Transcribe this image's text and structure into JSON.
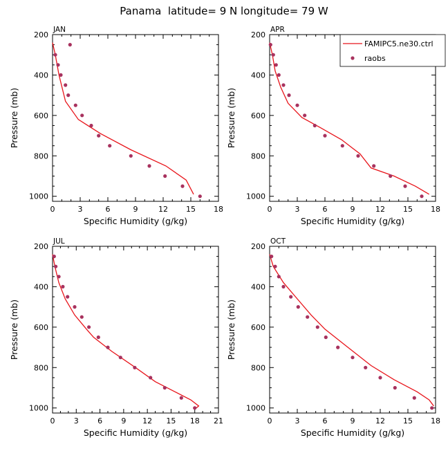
{
  "title": "Panama  latitude= 9 N longitude= 79 W",
  "legend": {
    "placement": "top-right of APR panel",
    "model_label": "FAMIPC5.ne30.ctrl",
    "obs_label": "raobs"
  },
  "colors": {
    "model": "#e8141a",
    "obs": "#a8325e"
  },
  "chart_data": [
    {
      "type": "line",
      "panel": "JAN",
      "xlabel": "Specific Humidity (g/kg)",
      "ylabel": "Pressure (mb)",
      "xlim": [
        0,
        18
      ],
      "xticks": [
        0,
        3,
        6,
        9,
        12,
        15,
        18
      ],
      "ylim": [
        200,
        1025
      ],
      "yticks": [
        200,
        400,
        600,
        800,
        1000
      ],
      "y_inverted": true,
      "series": [
        {
          "name": "FAMIPC5.ne30.ctrl",
          "x": [
            0.0,
            0.3,
            0.7,
            1.4,
            2.8,
            5.2,
            8.5,
            12.3,
            14.5,
            15.3
          ],
          "y": [
            240,
            300,
            400,
            530,
            620,
            690,
            770,
            850,
            920,
            990
          ]
        },
        {
          "name": "raobs",
          "x": [
            1.9,
            0.3,
            0.6,
            0.9,
            1.4,
            1.7,
            2.5,
            3.2,
            4.2,
            5.0,
            6.2,
            8.5,
            10.5,
            12.2,
            14.1,
            16.0
          ],
          "y": [
            250,
            300,
            350,
            400,
            450,
            500,
            550,
            600,
            650,
            700,
            750,
            800,
            850,
            900,
            950,
            1000
          ]
        }
      ]
    },
    {
      "type": "line",
      "panel": "APR",
      "xlabel": "Specific Humidity (g/kg)",
      "ylabel": "Pressure (mb)",
      "xlim": [
        0,
        18
      ],
      "xticks": [
        0,
        3,
        6,
        9,
        12,
        15,
        18
      ],
      "ylim": [
        200,
        1025
      ],
      "yticks": [
        200,
        400,
        600,
        800,
        1000
      ],
      "y_inverted": true,
      "series": [
        {
          "name": "FAMIPC5.ne30.ctrl",
          "x": [
            0.0,
            0.3,
            0.6,
            1.2,
            2.0,
            3.5,
            5.5,
            7.8,
            9.8,
            11.0,
            13.5,
            15.8,
            17.3
          ],
          "y": [
            240,
            300,
            380,
            460,
            540,
            610,
            660,
            720,
            790,
            860,
            900,
            950,
            990
          ]
        },
        {
          "name": "raobs",
          "x": [
            0.1,
            0.4,
            0.7,
            1.0,
            1.5,
            2.1,
            3.0,
            3.8,
            4.9,
            6.0,
            7.9,
            9.6,
            11.3,
            13.1,
            14.7,
            16.5
          ],
          "y": [
            250,
            300,
            350,
            400,
            450,
            500,
            550,
            600,
            650,
            700,
            750,
            800,
            850,
            900,
            950,
            1000
          ]
        }
      ]
    },
    {
      "type": "line",
      "panel": "JUL",
      "xlabel": "Specific Humidity (g/kg)",
      "ylabel": "Pressure (mb)",
      "xlim": [
        0,
        21
      ],
      "xticks": [
        0,
        3,
        6,
        9,
        12,
        15,
        18,
        21
      ],
      "ylim": [
        200,
        1025
      ],
      "yticks": [
        200,
        400,
        600,
        800,
        1000
      ],
      "y_inverted": true,
      "series": [
        {
          "name": "FAMIPC5.ne30.ctrl",
          "x": [
            0.0,
            0.3,
            0.8,
            1.6,
            2.8,
            4.3,
            5.2,
            7.5,
            10.5,
            13.0,
            15.5,
            17.5,
            18.5,
            18.2
          ],
          "y": [
            240,
            300,
            380,
            460,
            540,
            610,
            650,
            720,
            800,
            870,
            920,
            960,
            990,
            1000
          ]
        },
        {
          "name": "raobs",
          "x": [
            0.2,
            0.4,
            0.8,
            1.3,
            1.9,
            2.8,
            3.7,
            4.6,
            5.8,
            7.0,
            8.6,
            10.4,
            12.4,
            14.2,
            16.3,
            18.0
          ],
          "y": [
            250,
            300,
            350,
            400,
            450,
            500,
            550,
            600,
            650,
            700,
            750,
            800,
            850,
            900,
            950,
            1000
          ]
        }
      ]
    },
    {
      "type": "line",
      "panel": "OCT",
      "xlabel": "Specific Humidity (g/kg)",
      "ylabel": "Pressure (mb)",
      "xlim": [
        0,
        18
      ],
      "xticks": [
        0,
        3,
        6,
        9,
        12,
        15,
        18
      ],
      "ylim": [
        200,
        1025
      ],
      "yticks": [
        200,
        400,
        600,
        800,
        1000
      ],
      "y_inverted": true,
      "series": [
        {
          "name": "FAMIPC5.ne30.ctrl",
          "x": [
            0.0,
            0.4,
            1.5,
            3.0,
            4.5,
            6.0,
            8.5,
            11.0,
            13.5,
            16.0,
            17.3,
            17.8
          ],
          "y": [
            240,
            300,
            380,
            460,
            540,
            610,
            700,
            790,
            860,
            920,
            960,
            990
          ]
        },
        {
          "name": "raobs",
          "x": [
            0.2,
            0.6,
            1.0,
            1.5,
            2.3,
            3.1,
            4.1,
            5.2,
            6.1,
            7.4,
            9.0,
            10.4,
            12.0,
            13.6,
            15.7,
            17.6
          ],
          "y": [
            250,
            300,
            350,
            400,
            450,
            500,
            550,
            600,
            650,
            700,
            750,
            800,
            850,
            900,
            950,
            1000
          ]
        }
      ]
    }
  ]
}
